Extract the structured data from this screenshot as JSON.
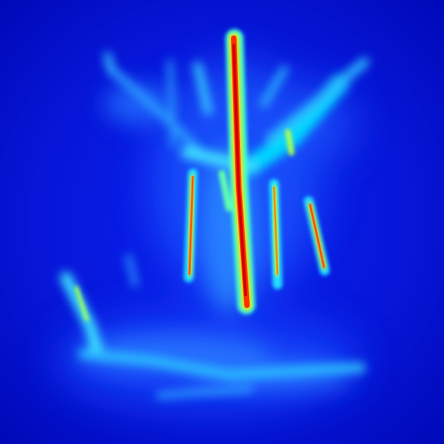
{
  "image": {
    "kind": "jet-colormap heatmap",
    "colormap": [
      "#00007f",
      "#0000ff",
      "#007fff",
      "#00ffff",
      "#7fff7f",
      "#ffff00",
      "#ff7f00",
      "#ff0000",
      "#7f0000"
    ],
    "background": "#0a12d6"
  }
}
